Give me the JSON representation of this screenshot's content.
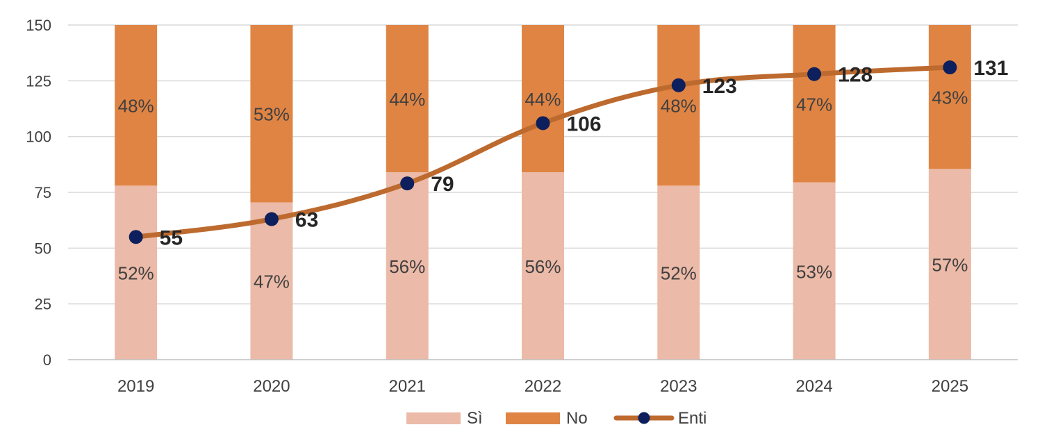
{
  "chart_data": {
    "type": "bar",
    "stacked": true,
    "categories": [
      "2019",
      "2020",
      "2021",
      "2022",
      "2023",
      "2024",
      "2025"
    ],
    "ylim": [
      0,
      150
    ],
    "yticks": [
      "0",
      "25",
      "50",
      "75",
      "100",
      "125",
      "150"
    ],
    "series": [
      {
        "name": "Sì",
        "color": "#ECBAA8",
        "type": "bar",
        "values": [
          52,
          47,
          56,
          56,
          52,
          53,
          57
        ],
        "labels": [
          "52%",
          "47%",
          "56%",
          "56%",
          "52%",
          "53%",
          "57%"
        ]
      },
      {
        "name": "No",
        "color": "#E08444",
        "type": "bar",
        "values": [
          48,
          53,
          44,
          44,
          48,
          47,
          43
        ],
        "labels": [
          "48%",
          "53%",
          "44%",
          "44%",
          "48%",
          "47%",
          "43%"
        ]
      },
      {
        "name": "Enti",
        "color": "#BD6A2F",
        "marker_color": "#0D1F5C",
        "type": "line",
        "values": [
          55,
          63,
          79,
          106,
          123,
          128,
          131
        ],
        "labels": [
          "55",
          "63",
          "79",
          "106",
          "123",
          "128",
          "131"
        ]
      }
    ],
    "grid": true,
    "legend": "bottom"
  }
}
